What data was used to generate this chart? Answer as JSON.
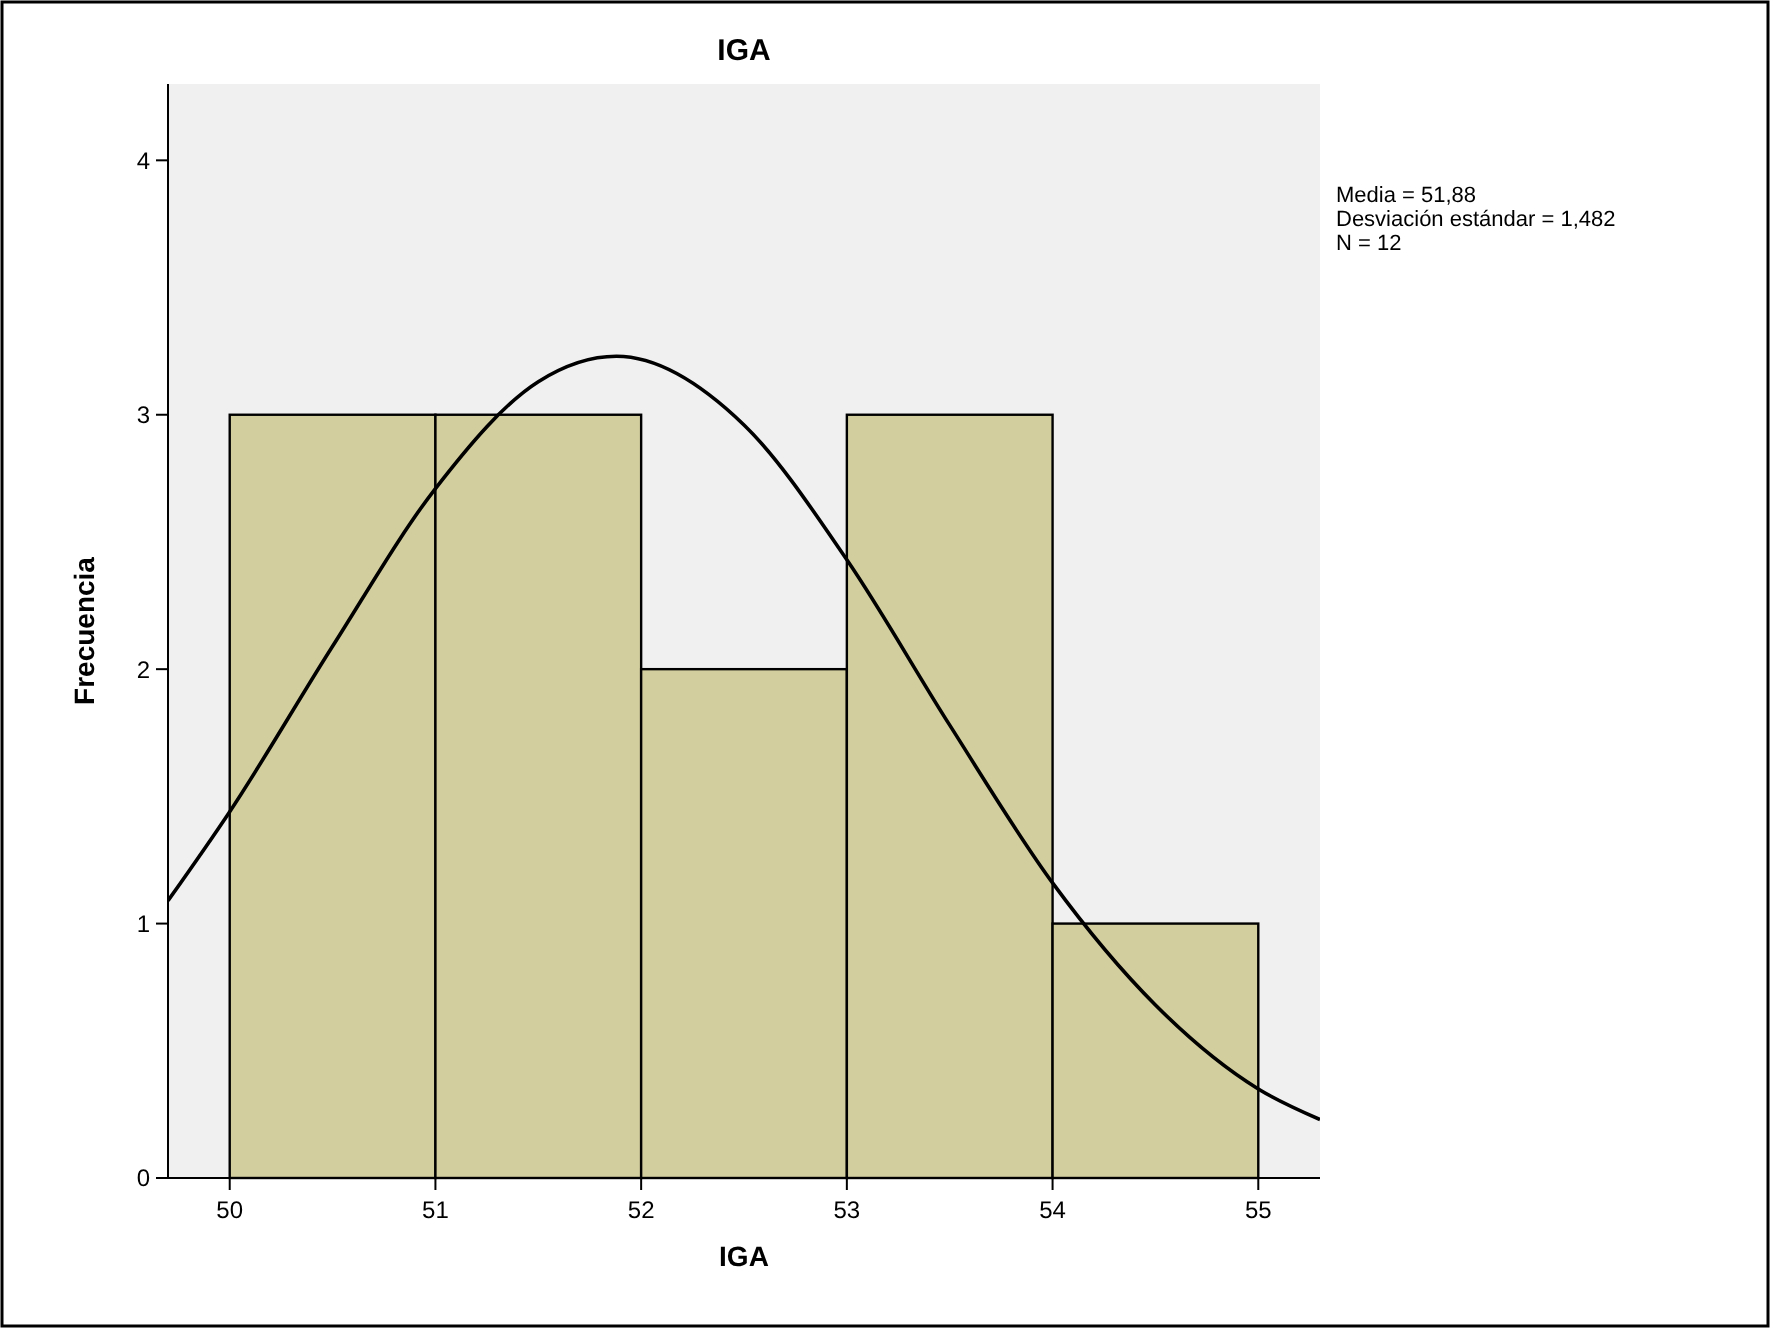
{
  "chart_data": {
    "type": "histogram",
    "title": "IGA",
    "xlabel": "IGA",
    "ylabel": "Frecuencia",
    "bins": [
      50,
      51,
      52,
      53,
      54,
      55
    ],
    "values": [
      3,
      3,
      2,
      3,
      1
    ],
    "color": "#d3ce9e",
    "series": [
      {
        "type": "line",
        "color": "#000000",
        "x": [
          49.7,
          50,
          50.5,
          51,
          51.5,
          51.88,
          52.5,
          53,
          53.5,
          54,
          54.5,
          55,
          55.3
        ],
        "values": [
          1.09,
          1.44,
          2.09,
          2.71,
          3.13,
          3.23,
          2.96,
          2.43,
          1.78,
          1.16,
          0.68,
          0.35,
          0.23
        ]
      }
    ],
    "xlim": [
      49.7,
      55.3
    ],
    "xticks": [
      50,
      51,
      52,
      53,
      54,
      55
    ],
    "ylim": [
      0,
      4.3
    ],
    "yticks": [
      0,
      1,
      2,
      3,
      4
    ],
    "annotations": [
      "Media = 51,88",
      "Desviación estándar = 1,482",
      "N = 12"
    ]
  }
}
